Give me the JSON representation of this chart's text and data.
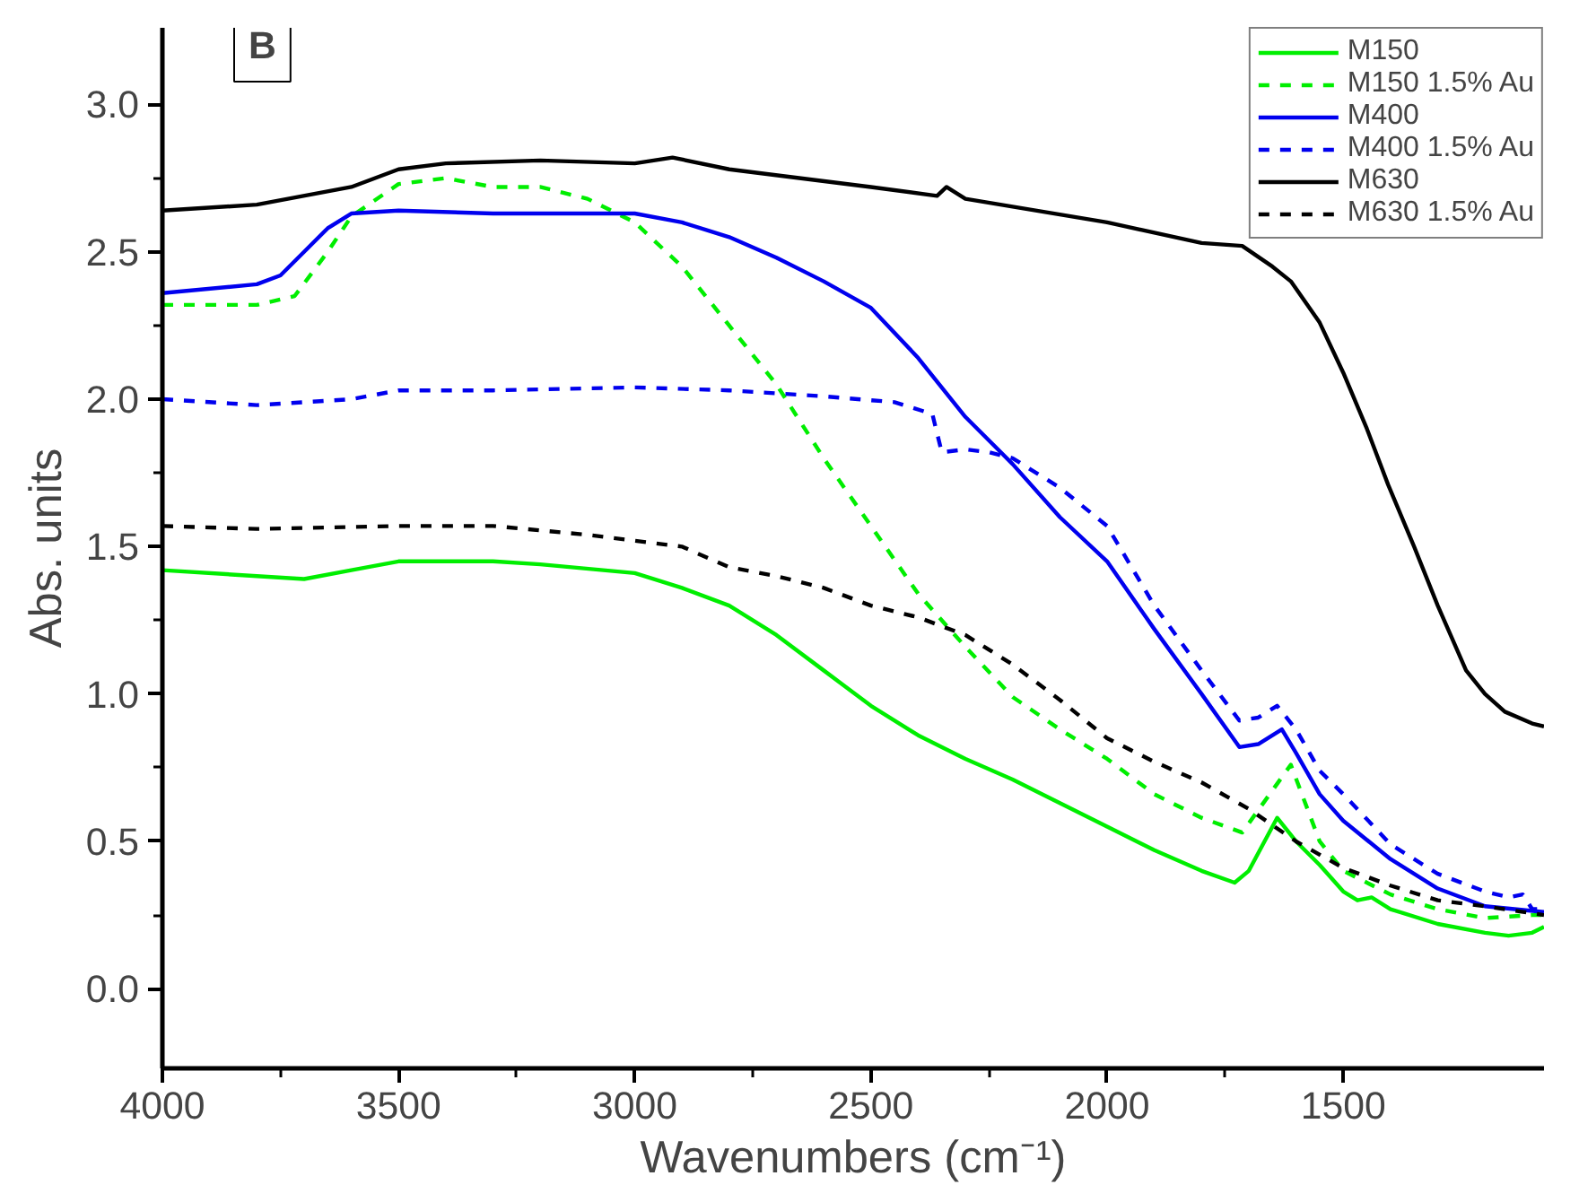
{
  "chart_data": {
    "type": "line",
    "xlabel": "Wavenumbers (cm⁻¹)",
    "ylabel": "Abs. units",
    "annotations": [
      "B"
    ],
    "xlim": [
      4000,
      1075
    ],
    "ylim": [
      -0.27,
      3.26
    ],
    "xticks": [
      4000,
      3500,
      3000,
      2500,
      2000,
      1500
    ],
    "yticks": [
      {
        "value": 0,
        "label": "0.0"
      },
      {
        "value": 0.5,
        "label": "0.5"
      },
      {
        "value": 1,
        "label": "1.0"
      },
      {
        "value": 1.5,
        "label": "1.5"
      },
      {
        "value": 2,
        "label": "2.0"
      },
      {
        "value": 2.5,
        "label": "2.5"
      },
      {
        "value": 3,
        "label": "3.0"
      }
    ],
    "grid": false,
    "legend": "top right",
    "series": [
      {
        "name": "M150",
        "color": "#00ee00",
        "line_style": "solid",
        "x": [
          4000,
          3800,
          3700,
          3600,
          3500,
          3300,
          3200,
          3000,
          2900,
          2800,
          2700,
          2600,
          2500,
          2400,
          2300,
          2200,
          2100,
          2000,
          1900,
          1800,
          1730,
          1700,
          1640,
          1600,
          1550,
          1500,
          1470,
          1440,
          1400,
          1300,
          1200,
          1150,
          1100,
          1075
        ],
        "values": [
          1.42,
          1.4,
          1.39,
          1.42,
          1.45,
          1.45,
          1.44,
          1.41,
          1.36,
          1.3,
          1.2,
          1.08,
          0.96,
          0.86,
          0.78,
          0.71,
          0.63,
          0.55,
          0.47,
          0.4,
          0.36,
          0.4,
          0.58,
          0.5,
          0.42,
          0.33,
          0.3,
          0.31,
          0.27,
          0.22,
          0.19,
          0.18,
          0.19,
          0.21
        ]
      },
      {
        "name": "M150 1.5% Au",
        "color": "#00ee00",
        "line_style": "dashed",
        "x": [
          4000,
          3800,
          3720,
          3650,
          3600,
          3500,
          3400,
          3300,
          3200,
          3100,
          3000,
          2900,
          2800,
          2700,
          2600,
          2500,
          2400,
          2300,
          2200,
          2100,
          2000,
          1900,
          1800,
          1714,
          1611,
          1550,
          1500,
          1400,
          1300,
          1200,
          1100,
          1075
        ],
        "values": [
          2.32,
          2.32,
          2.35,
          2.5,
          2.62,
          2.73,
          2.75,
          2.72,
          2.72,
          2.68,
          2.6,
          2.45,
          2.25,
          2.05,
          1.8,
          1.57,
          1.34,
          1.16,
          0.99,
          0.88,
          0.78,
          0.66,
          0.58,
          0.53,
          0.76,
          0.5,
          0.4,
          0.32,
          0.27,
          0.24,
          0.25,
          0.25
        ]
      },
      {
        "name": "M400",
        "color": "#0000ee",
        "line_style": "solid",
        "x": [
          4000,
          3800,
          3750,
          3700,
          3650,
          3600,
          3500,
          3300,
          3000,
          2900,
          2800,
          2700,
          2600,
          2500,
          2400,
          2300,
          2200,
          2100,
          2000,
          1900,
          1800,
          1720,
          1680,
          1630,
          1600,
          1550,
          1500,
          1400,
          1300,
          1200,
          1075
        ],
        "values": [
          2.36,
          2.39,
          2.42,
          2.5,
          2.58,
          2.63,
          2.64,
          2.63,
          2.63,
          2.6,
          2.55,
          2.48,
          2.4,
          2.31,
          2.14,
          1.94,
          1.78,
          1.6,
          1.45,
          1.22,
          1.0,
          0.82,
          0.83,
          0.88,
          0.8,
          0.66,
          0.57,
          0.44,
          0.34,
          0.28,
          0.26
        ]
      },
      {
        "name": "M400 1.5% Au",
        "color": "#0000ee",
        "line_style": "dashed",
        "x": [
          4000,
          3800,
          3600,
          3500,
          3300,
          3000,
          2800,
          2600,
          2450,
          2370,
          2350,
          2300,
          2250,
          2200,
          2100,
          2000,
          1900,
          1800,
          1720,
          1680,
          1640,
          1600,
          1550,
          1500,
          1400,
          1300,
          1200,
          1150,
          1120,
          1100,
          1075
        ],
        "values": [
          2.0,
          1.98,
          2.0,
          2.03,
          2.03,
          2.04,
          2.03,
          2.01,
          1.99,
          1.95,
          1.82,
          1.83,
          1.82,
          1.8,
          1.7,
          1.57,
          1.3,
          1.08,
          0.91,
          0.92,
          0.96,
          0.88,
          0.74,
          0.66,
          0.49,
          0.39,
          0.33,
          0.31,
          0.32,
          0.27,
          0.27
        ]
      },
      {
        "name": "M630",
        "color": "#000000",
        "line_style": "solid",
        "x": [
          4000,
          3800,
          3600,
          3500,
          3400,
          3200,
          3000,
          2920,
          2800,
          2500,
          2360,
          2340,
          2300,
          2000,
          1800,
          1714,
          1650,
          1611,
          1550,
          1500,
          1450,
          1405,
          1350,
          1300,
          1240,
          1200,
          1158,
          1100,
          1075
        ],
        "values": [
          2.64,
          2.66,
          2.72,
          2.78,
          2.8,
          2.81,
          2.8,
          2.82,
          2.78,
          2.72,
          2.69,
          2.72,
          2.68,
          2.6,
          2.53,
          2.52,
          2.45,
          2.4,
          2.26,
          2.09,
          1.9,
          1.71,
          1.5,
          1.3,
          1.08,
          1.0,
          0.94,
          0.9,
          0.89
        ]
      },
      {
        "name": "M630 1.5% Au",
        "color": "#000000",
        "line_style": "dashed",
        "x": [
          4000,
          3800,
          3500,
          3300,
          3100,
          2900,
          2800,
          2700,
          2600,
          2500,
          2400,
          2300,
          2200,
          2100,
          2000,
          1900,
          1800,
          1700,
          1600,
          1500,
          1400,
          1300,
          1200,
          1075
        ],
        "values": [
          1.57,
          1.56,
          1.57,
          1.57,
          1.54,
          1.5,
          1.43,
          1.4,
          1.36,
          1.3,
          1.26,
          1.2,
          1.1,
          0.98,
          0.85,
          0.77,
          0.7,
          0.61,
          0.5,
          0.41,
          0.35,
          0.3,
          0.28,
          0.25
        ]
      }
    ]
  }
}
